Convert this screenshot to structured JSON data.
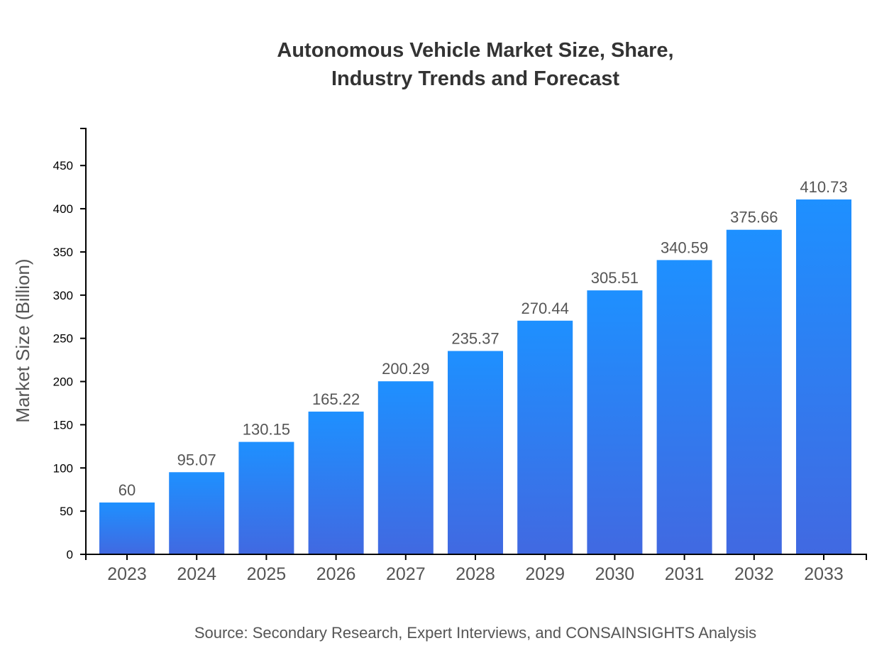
{
  "chart_data": {
    "type": "bar",
    "title_lines": [
      "Autonomous Vehicle Market Size, Share,",
      "Industry Trends and Forecast"
    ],
    "categories": [
      "2023",
      "2024",
      "2025",
      "2026",
      "2027",
      "2028",
      "2029",
      "2030",
      "2031",
      "2032",
      "2033"
    ],
    "values": [
      60,
      95.07,
      130.15,
      165.22,
      200.29,
      235.37,
      270.44,
      305.51,
      340.59,
      375.66,
      410.73
    ],
    "data_labels": [
      "60",
      "95.07",
      "130.15",
      "165.22",
      "200.29",
      "235.37",
      "270.44",
      "305.51",
      "340.59",
      "375.66",
      "410.73"
    ],
    "xlabel": "",
    "ylabel": "Market Size (Billion)",
    "ylim": [
      0,
      492.9
    ],
    "yticks": [
      0,
      50,
      100,
      150,
      200,
      250,
      300,
      350,
      400,
      450
    ],
    "grid": false,
    "bar_gradient": {
      "top": "#1e90ff",
      "bottom": "#4169e1"
    },
    "source": "Source: Secondary Research, Expert Interviews, and CONSAINSIGHTS Analysis"
  }
}
